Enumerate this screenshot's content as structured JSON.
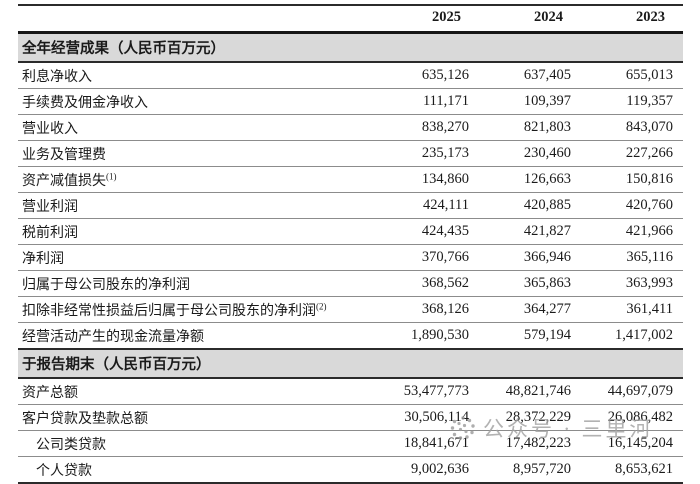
{
  "table": {
    "years": [
      "2025",
      "2024",
      "2023"
    ],
    "sections": [
      {
        "title": "全年经营成果（人民币百万元）",
        "rows": [
          {
            "label": "利息净收入",
            "sup": "",
            "indent": false,
            "values": [
              "635,126",
              "637,405",
              "655,013"
            ]
          },
          {
            "label": "手续费及佣金净收入",
            "sup": "",
            "indent": false,
            "values": [
              "111,171",
              "109,397",
              "119,357"
            ]
          },
          {
            "label": "营业收入",
            "sup": "",
            "indent": false,
            "values": [
              "838,270",
              "821,803",
              "843,070"
            ]
          },
          {
            "label": "业务及管理费",
            "sup": "",
            "indent": false,
            "values": [
              "235,173",
              "230,460",
              "227,266"
            ]
          },
          {
            "label": "资产减值损失",
            "sup": "(1)",
            "indent": false,
            "values": [
              "134,860",
              "126,663",
              "150,816"
            ]
          },
          {
            "label": "营业利润",
            "sup": "",
            "indent": false,
            "values": [
              "424,111",
              "420,885",
              "420,760"
            ]
          },
          {
            "label": "税前利润",
            "sup": "",
            "indent": false,
            "values": [
              "424,435",
              "421,827",
              "421,966"
            ]
          },
          {
            "label": "净利润",
            "sup": "",
            "indent": false,
            "values": [
              "370,766",
              "366,946",
              "365,116"
            ]
          },
          {
            "label": "归属于母公司股东的净利润",
            "sup": "",
            "indent": false,
            "values": [
              "368,562",
              "365,863",
              "363,993"
            ]
          },
          {
            "label": "扣除非经常性损益后归属于母公司股东的净利润",
            "sup": "(2)",
            "indent": false,
            "values": [
              "368,126",
              "364,277",
              "361,411"
            ]
          },
          {
            "label": "经营活动产生的现金流量净额",
            "sup": "",
            "indent": false,
            "values": [
              "1,890,530",
              "579,194",
              "1,417,002"
            ]
          }
        ]
      },
      {
        "title": "于报告期末（人民币百万元）",
        "rows": [
          {
            "label": "资产总额",
            "sup": "",
            "indent": false,
            "values": [
              "53,477,773",
              "48,821,746",
              "44,697,079"
            ]
          },
          {
            "label": "客户贷款及垫款总额",
            "sup": "",
            "indent": false,
            "values": [
              "30,506,114",
              "28,372,229",
              "26,086,482"
            ]
          },
          {
            "label": "公司类贷款",
            "sup": "",
            "indent": true,
            "values": [
              "18,841,671",
              "17,482,223",
              "16,145,204"
            ]
          },
          {
            "label": "个人贷款",
            "sup": "",
            "indent": true,
            "values": [
              "9,002,636",
              "8,957,720",
              "8,653,621"
            ]
          }
        ]
      }
    ]
  },
  "watermark": {
    "text": "公众号 · 三里河"
  },
  "colors": {
    "band_bg": "#d9d9d9",
    "rule_dark": "#2b2b2b",
    "rule_light": "#8c8c8c",
    "text": "#1a1a1a",
    "watermark": "#a0a0a0"
  }
}
